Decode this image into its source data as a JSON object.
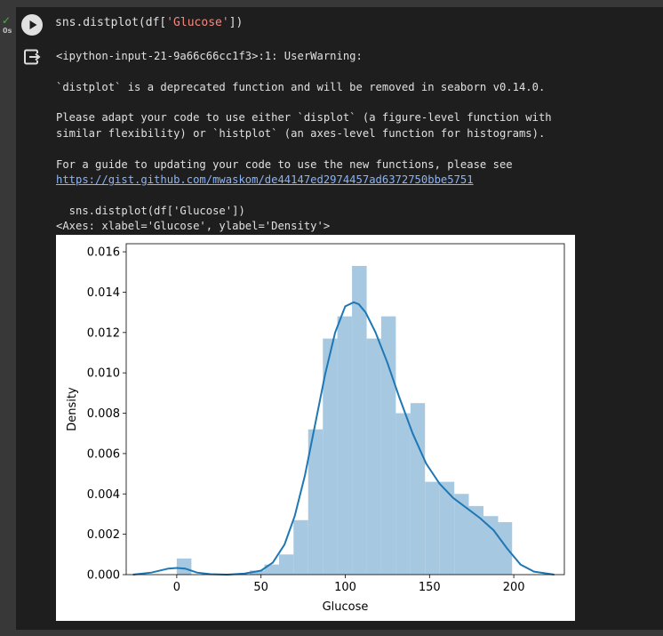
{
  "cell": {
    "exec_time": "0s",
    "code_prefix": "sns.distplot(df[",
    "code_string": "'Glucose'",
    "code_suffix": "])"
  },
  "output": {
    "warning_line": "<ipython-input-21-9a66c66cc1f3>:1: UserWarning:",
    "deprecated_line": "`distplot` is a deprecated function and will be removed in seaborn v0.14.0.",
    "adapt_line1": "Please adapt your code to use either `displot` (a figure-level function with",
    "adapt_line2": "similar flexibility) or `histplot` (an axes-level function for histograms).",
    "guide_line": "For a guide to updating your code to use the new functions, please see",
    "guide_url": "https://gist.github.com/mwaskom/de44147ed2974457ad6372750bbe5751",
    "source_line": "  sns.distplot(df['Glucose'])",
    "axes_repr": "<Axes: xlabel='Glucose', ylabel='Density'>"
  },
  "colors": {
    "bar": "#a6c8e0",
    "kde": "#1f77b4"
  },
  "chart_data": {
    "type": "bar",
    "xlabel": "Glucose",
    "ylabel": "Density",
    "xlim": [
      -30,
      230
    ],
    "ylim": [
      0,
      0.0164
    ],
    "xticks": [
      0,
      50,
      100,
      150,
      200
    ],
    "yticks": [
      "0.000",
      "0.002",
      "0.004",
      "0.006",
      "0.008",
      "0.010",
      "0.012",
      "0.014",
      "0.016"
    ],
    "bins": [
      {
        "x0": 0,
        "x1": 8.7,
        "value": 0.0008
      },
      {
        "x0": 8.7,
        "x1": 17.3,
        "value": 0
      },
      {
        "x0": 17.3,
        "x1": 26,
        "value": 0
      },
      {
        "x0": 26,
        "x1": 34.7,
        "value": 0
      },
      {
        "x0": 34.7,
        "x1": 43.3,
        "value": 0
      },
      {
        "x0": 43.3,
        "x1": 52,
        "value": 0.0002
      },
      {
        "x0": 52,
        "x1": 60.7,
        "value": 0.0005
      },
      {
        "x0": 60.7,
        "x1": 69.3,
        "value": 0.001
      },
      {
        "x0": 69.3,
        "x1": 78,
        "value": 0.0027
      },
      {
        "x0": 78,
        "x1": 86.7,
        "value": 0.0072
      },
      {
        "x0": 86.7,
        "x1": 95.3,
        "value": 0.0117
      },
      {
        "x0": 95.3,
        "x1": 104,
        "value": 0.0128
      },
      {
        "x0": 104,
        "x1": 112.7,
        "value": 0.0153
      },
      {
        "x0": 112.7,
        "x1": 121.3,
        "value": 0.0117
      },
      {
        "x0": 121.3,
        "x1": 130,
        "value": 0.0128
      },
      {
        "x0": 130,
        "x1": 138.7,
        "value": 0.008
      },
      {
        "x0": 138.7,
        "x1": 147.3,
        "value": 0.0085
      },
      {
        "x0": 147.3,
        "x1": 156,
        "value": 0.0046
      },
      {
        "x0": 156,
        "x1": 164.7,
        "value": 0.0046
      },
      {
        "x0": 164.7,
        "x1": 173.3,
        "value": 0.004
      },
      {
        "x0": 173.3,
        "x1": 182,
        "value": 0.0034
      },
      {
        "x0": 182,
        "x1": 190.7,
        "value": 0.0029
      },
      {
        "x0": 190.7,
        "x1": 199,
        "value": 0.0026
      }
    ],
    "kde": {
      "x": [
        -26,
        -15,
        -5,
        0,
        5,
        12,
        20,
        30,
        40,
        50,
        57,
        64,
        70,
        76,
        82,
        88,
        94,
        100,
        105,
        108,
        112,
        118,
        125,
        132,
        140,
        148,
        156,
        164,
        172,
        180,
        188,
        196,
        204,
        212,
        224
      ],
      "y": [
        0.0,
        0.0001,
        0.0003,
        0.00033,
        0.0003,
        0.0001,
        2e-05,
        0.0,
        5e-05,
        0.0002,
        0.0006,
        0.0015,
        0.0029,
        0.0049,
        0.0074,
        0.0099,
        0.012,
        0.0133,
        0.0135,
        0.0134,
        0.013,
        0.012,
        0.0105,
        0.0088,
        0.007,
        0.0055,
        0.0045,
        0.0038,
        0.0033,
        0.0028,
        0.0022,
        0.0013,
        0.0005,
        0.00015,
        0.0
      ]
    }
  }
}
